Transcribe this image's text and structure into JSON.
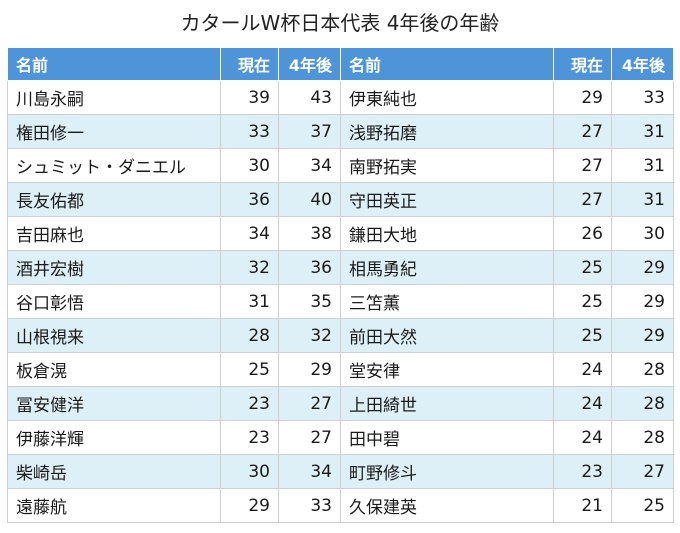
{
  "title": "カタールW杯日本代表 4年後の年齢",
  "headers": {
    "name": "名前",
    "current": "現在",
    "after4": "4年後"
  },
  "rows": [
    [
      {
        "name": "川島永嗣",
        "now": "39",
        "later": "43"
      },
      {
        "name": "伊東純也",
        "now": "29",
        "later": "33"
      }
    ],
    [
      {
        "name": "権田修一",
        "now": "33",
        "later": "37"
      },
      {
        "name": "浅野拓磨",
        "now": "27",
        "later": "31"
      }
    ],
    [
      {
        "name": "シュミット・ダニエル",
        "now": "30",
        "later": "34"
      },
      {
        "name": "南野拓実",
        "now": "27",
        "later": "31"
      }
    ],
    [
      {
        "name": "長友佑都",
        "now": "36",
        "later": "40"
      },
      {
        "name": "守田英正",
        "now": "27",
        "later": "31"
      }
    ],
    [
      {
        "name": "吉田麻也",
        "now": "34",
        "later": "38"
      },
      {
        "name": "鎌田大地",
        "now": "26",
        "later": "30"
      }
    ],
    [
      {
        "name": "酒井宏樹",
        "now": "32",
        "later": "36"
      },
      {
        "name": "相馬勇紀",
        "now": "25",
        "later": "29"
      }
    ],
    [
      {
        "name": "谷口彰悟",
        "now": "31",
        "later": "35"
      },
      {
        "name": "三笘薫",
        "now": "25",
        "later": "29"
      }
    ],
    [
      {
        "name": "山根視来",
        "now": "28",
        "later": "32"
      },
      {
        "name": "前田大然",
        "now": "25",
        "later": "29"
      }
    ],
    [
      {
        "name": "板倉滉",
        "now": "25",
        "later": "29"
      },
      {
        "name": "堂安律",
        "now": "24",
        "later": "28"
      }
    ],
    [
      {
        "name": "冨安健洋",
        "now": "23",
        "later": "27"
      },
      {
        "name": "上田綺世",
        "now": "24",
        "later": "28"
      }
    ],
    [
      {
        "name": "伊藤洋輝",
        "now": "23",
        "later": "27"
      },
      {
        "name": "田中碧",
        "now": "24",
        "later": "28"
      }
    ],
    [
      {
        "name": "柴崎岳",
        "now": "30",
        "later": "34"
      },
      {
        "name": "町野修斗",
        "now": "23",
        "later": "27"
      }
    ],
    [
      {
        "name": "遠藤航",
        "now": "29",
        "later": "33"
      },
      {
        "name": "久保建英",
        "now": "21",
        "later": "25"
      }
    ]
  ]
}
